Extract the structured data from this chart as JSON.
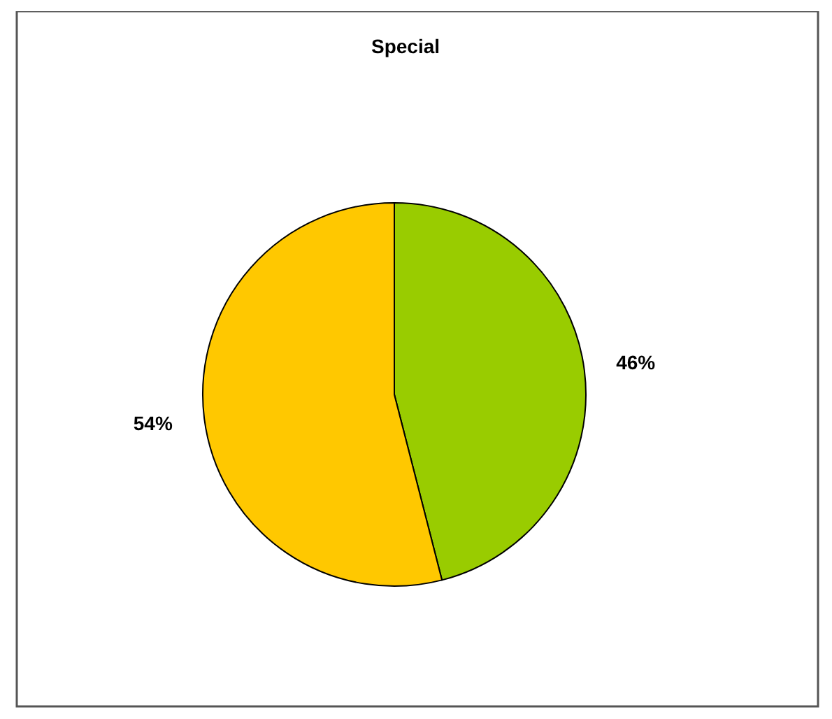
{
  "chart_data": {
    "type": "pie",
    "title": "Special",
    "categories": [
      null,
      null
    ],
    "values": [
      46,
      54
    ],
    "colors": [
      "#99cc00",
      "#ffc800"
    ],
    "value_labels": [
      "46%",
      "54%"
    ]
  }
}
